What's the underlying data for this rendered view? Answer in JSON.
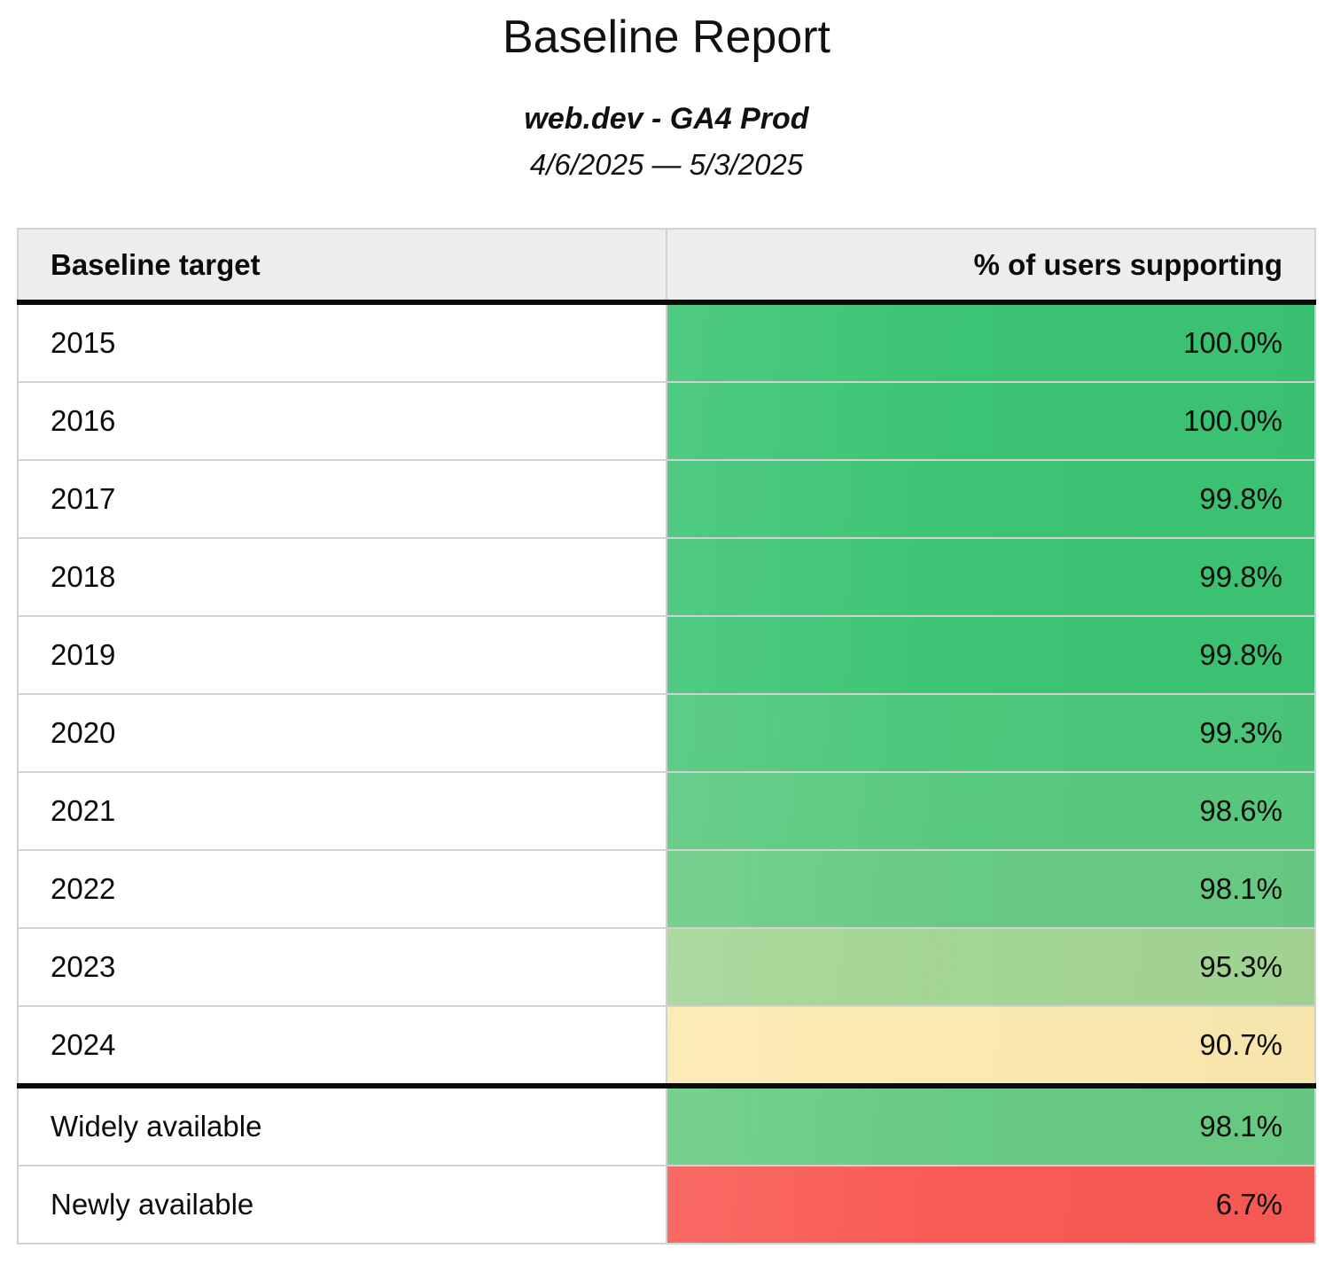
{
  "header": {
    "title": "Baseline Report",
    "subtitle": "web.dev - GA4 Prod",
    "date_range": "4/6/2025 — 5/3/2025"
  },
  "table": {
    "columns": [
      "Baseline target",
      "% of users supporting"
    ],
    "rows": [
      {
        "label": "2015",
        "value": "100.0%",
        "color": "#3bc473",
        "section": "year"
      },
      {
        "label": "2016",
        "value": "100.0%",
        "color": "#3bc473",
        "section": "year"
      },
      {
        "label": "2017",
        "value": "99.8%",
        "color": "#3dc474",
        "section": "year"
      },
      {
        "label": "2018",
        "value": "99.8%",
        "color": "#3dc474",
        "section": "year"
      },
      {
        "label": "2019",
        "value": "99.8%",
        "color": "#3dc474",
        "section": "year"
      },
      {
        "label": "2020",
        "value": "99.3%",
        "color": "#4bc77a",
        "section": "year"
      },
      {
        "label": "2021",
        "value": "98.6%",
        "color": "#59c97e",
        "section": "year"
      },
      {
        "label": "2022",
        "value": "98.1%",
        "color": "#68cb83",
        "section": "year"
      },
      {
        "label": "2023",
        "value": "95.3%",
        "color": "#a3d594",
        "section": "year"
      },
      {
        "label": "2024",
        "value": "90.7%",
        "color": "#fce9af",
        "section": "year"
      },
      {
        "label": "Widely available",
        "value": "98.1%",
        "color": "#68cb83",
        "section": "summary",
        "divider_above": true
      },
      {
        "label": "Newly available",
        "value": "6.7%",
        "color": "#f95a54",
        "section": "summary"
      }
    ]
  },
  "colors": {
    "header_background": "#ededed",
    "grid_border": "#d2d2d2",
    "section_divider": "#0a0a0a",
    "scale_high_green": "#3bc473",
    "scale_mid_yellow": "#fce9af",
    "scale_low_red": "#f95a54",
    "text": "#111111"
  },
  "chart_data": {
    "type": "table",
    "title": "Baseline Report",
    "subtitle": "web.dev - GA4 Prod",
    "date_range": "4/6/2025 — 5/3/2025",
    "columns": [
      "Baseline target",
      "% of users supporting"
    ],
    "categories": [
      "2015",
      "2016",
      "2017",
      "2018",
      "2019",
      "2020",
      "2021",
      "2022",
      "2023",
      "2024",
      "Widely available",
      "Newly available"
    ],
    "values": [
      100.0,
      100.0,
      99.8,
      99.8,
      99.8,
      99.3,
      98.6,
      98.1,
      95.3,
      90.7,
      98.1,
      6.7
    ],
    "value_format": "percent",
    "color_scale": "green (high) → yellow (~90%) → red (low), applied to value cells"
  }
}
